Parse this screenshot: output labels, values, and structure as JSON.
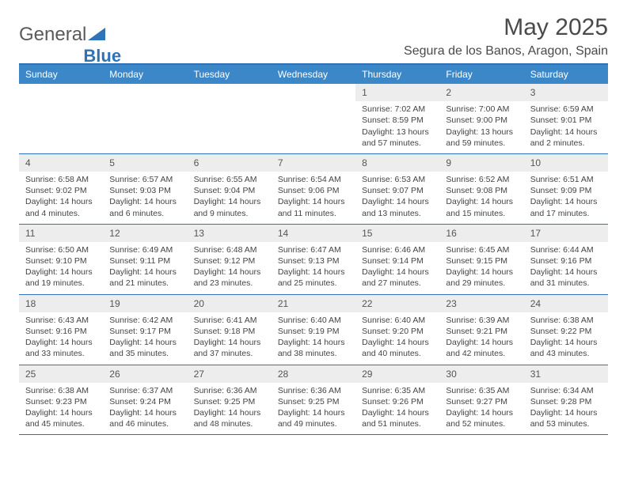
{
  "logo": {
    "text1": "General",
    "text2": "Blue",
    "triangle_color": "#2f72b8"
  },
  "header": {
    "title": "May 2025",
    "location": "Segura de los Banos, Aragon, Spain"
  },
  "colors": {
    "header_bar": "#3b87c8",
    "border": "#2f72b8",
    "daynum_bg": "#ededed",
    "text": "#444444",
    "title_text": "#4a4a4a"
  },
  "days_of_week": [
    "Sunday",
    "Monday",
    "Tuesday",
    "Wednesday",
    "Thursday",
    "Friday",
    "Saturday"
  ],
  "weeks": [
    [
      {
        "empty": true
      },
      {
        "empty": true
      },
      {
        "empty": true
      },
      {
        "empty": true
      },
      {
        "num": "1",
        "sunrise": "Sunrise: 7:02 AM",
        "sunset": "Sunset: 8:59 PM",
        "daylight": "Daylight: 13 hours and 57 minutes."
      },
      {
        "num": "2",
        "sunrise": "Sunrise: 7:00 AM",
        "sunset": "Sunset: 9:00 PM",
        "daylight": "Daylight: 13 hours and 59 minutes."
      },
      {
        "num": "3",
        "sunrise": "Sunrise: 6:59 AM",
        "sunset": "Sunset: 9:01 PM",
        "daylight": "Daylight: 14 hours and 2 minutes."
      }
    ],
    [
      {
        "num": "4",
        "sunrise": "Sunrise: 6:58 AM",
        "sunset": "Sunset: 9:02 PM",
        "daylight": "Daylight: 14 hours and 4 minutes."
      },
      {
        "num": "5",
        "sunrise": "Sunrise: 6:57 AM",
        "sunset": "Sunset: 9:03 PM",
        "daylight": "Daylight: 14 hours and 6 minutes."
      },
      {
        "num": "6",
        "sunrise": "Sunrise: 6:55 AM",
        "sunset": "Sunset: 9:04 PM",
        "daylight": "Daylight: 14 hours and 9 minutes."
      },
      {
        "num": "7",
        "sunrise": "Sunrise: 6:54 AM",
        "sunset": "Sunset: 9:06 PM",
        "daylight": "Daylight: 14 hours and 11 minutes."
      },
      {
        "num": "8",
        "sunrise": "Sunrise: 6:53 AM",
        "sunset": "Sunset: 9:07 PM",
        "daylight": "Daylight: 14 hours and 13 minutes."
      },
      {
        "num": "9",
        "sunrise": "Sunrise: 6:52 AM",
        "sunset": "Sunset: 9:08 PM",
        "daylight": "Daylight: 14 hours and 15 minutes."
      },
      {
        "num": "10",
        "sunrise": "Sunrise: 6:51 AM",
        "sunset": "Sunset: 9:09 PM",
        "daylight": "Daylight: 14 hours and 17 minutes."
      }
    ],
    [
      {
        "num": "11",
        "sunrise": "Sunrise: 6:50 AM",
        "sunset": "Sunset: 9:10 PM",
        "daylight": "Daylight: 14 hours and 19 minutes."
      },
      {
        "num": "12",
        "sunrise": "Sunrise: 6:49 AM",
        "sunset": "Sunset: 9:11 PM",
        "daylight": "Daylight: 14 hours and 21 minutes."
      },
      {
        "num": "13",
        "sunrise": "Sunrise: 6:48 AM",
        "sunset": "Sunset: 9:12 PM",
        "daylight": "Daylight: 14 hours and 23 minutes."
      },
      {
        "num": "14",
        "sunrise": "Sunrise: 6:47 AM",
        "sunset": "Sunset: 9:13 PM",
        "daylight": "Daylight: 14 hours and 25 minutes."
      },
      {
        "num": "15",
        "sunrise": "Sunrise: 6:46 AM",
        "sunset": "Sunset: 9:14 PM",
        "daylight": "Daylight: 14 hours and 27 minutes."
      },
      {
        "num": "16",
        "sunrise": "Sunrise: 6:45 AM",
        "sunset": "Sunset: 9:15 PM",
        "daylight": "Daylight: 14 hours and 29 minutes."
      },
      {
        "num": "17",
        "sunrise": "Sunrise: 6:44 AM",
        "sunset": "Sunset: 9:16 PM",
        "daylight": "Daylight: 14 hours and 31 minutes."
      }
    ],
    [
      {
        "num": "18",
        "sunrise": "Sunrise: 6:43 AM",
        "sunset": "Sunset: 9:16 PM",
        "daylight": "Daylight: 14 hours and 33 minutes."
      },
      {
        "num": "19",
        "sunrise": "Sunrise: 6:42 AM",
        "sunset": "Sunset: 9:17 PM",
        "daylight": "Daylight: 14 hours and 35 minutes."
      },
      {
        "num": "20",
        "sunrise": "Sunrise: 6:41 AM",
        "sunset": "Sunset: 9:18 PM",
        "daylight": "Daylight: 14 hours and 37 minutes."
      },
      {
        "num": "21",
        "sunrise": "Sunrise: 6:40 AM",
        "sunset": "Sunset: 9:19 PM",
        "daylight": "Daylight: 14 hours and 38 minutes."
      },
      {
        "num": "22",
        "sunrise": "Sunrise: 6:40 AM",
        "sunset": "Sunset: 9:20 PM",
        "daylight": "Daylight: 14 hours and 40 minutes."
      },
      {
        "num": "23",
        "sunrise": "Sunrise: 6:39 AM",
        "sunset": "Sunset: 9:21 PM",
        "daylight": "Daylight: 14 hours and 42 minutes."
      },
      {
        "num": "24",
        "sunrise": "Sunrise: 6:38 AM",
        "sunset": "Sunset: 9:22 PM",
        "daylight": "Daylight: 14 hours and 43 minutes."
      }
    ],
    [
      {
        "num": "25",
        "sunrise": "Sunrise: 6:38 AM",
        "sunset": "Sunset: 9:23 PM",
        "daylight": "Daylight: 14 hours and 45 minutes."
      },
      {
        "num": "26",
        "sunrise": "Sunrise: 6:37 AM",
        "sunset": "Sunset: 9:24 PM",
        "daylight": "Daylight: 14 hours and 46 minutes."
      },
      {
        "num": "27",
        "sunrise": "Sunrise: 6:36 AM",
        "sunset": "Sunset: 9:25 PM",
        "daylight": "Daylight: 14 hours and 48 minutes."
      },
      {
        "num": "28",
        "sunrise": "Sunrise: 6:36 AM",
        "sunset": "Sunset: 9:25 PM",
        "daylight": "Daylight: 14 hours and 49 minutes."
      },
      {
        "num": "29",
        "sunrise": "Sunrise: 6:35 AM",
        "sunset": "Sunset: 9:26 PM",
        "daylight": "Daylight: 14 hours and 51 minutes."
      },
      {
        "num": "30",
        "sunrise": "Sunrise: 6:35 AM",
        "sunset": "Sunset: 9:27 PM",
        "daylight": "Daylight: 14 hours and 52 minutes."
      },
      {
        "num": "31",
        "sunrise": "Sunrise: 6:34 AM",
        "sunset": "Sunset: 9:28 PM",
        "daylight": "Daylight: 14 hours and 53 minutes."
      }
    ]
  ]
}
